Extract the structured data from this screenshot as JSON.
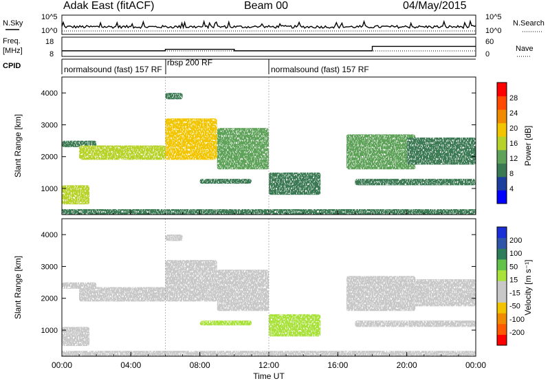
{
  "header": {
    "station": "Adak East (fitACF)",
    "beam": "Beam 00",
    "date": "04/May/2015"
  },
  "labels": {
    "nsky": "N.Sky",
    "nsearch": "N.Search",
    "freq": "Freq.",
    "mhz": "[MHz]",
    "nave": "Nave",
    "cpid": "CPID",
    "slant_range": "Slant Range [km]",
    "time_ut": "Time UT",
    "power_cb_label": "Power [dB]",
    "velocity_cb_label": "Velocity [m s⁻¹]"
  },
  "noise_panel": {
    "left_ticks": [
      "10^5",
      "10^0"
    ],
    "right_ticks": [
      "10^5",
      "10^0"
    ]
  },
  "freq_panel": {
    "left_ticks": [
      "18",
      "8"
    ],
    "right_ticks": [
      "60",
      "0"
    ],
    "freq_segments": [
      {
        "start": 0,
        "end": 6,
        "mhz": 10.9
      },
      {
        "start": 6,
        "end": 10,
        "mhz": 11.7
      },
      {
        "start": 10,
        "end": 18,
        "mhz": 10.9
      },
      {
        "start": 18,
        "end": 24,
        "mhz": 13.2
      }
    ]
  },
  "cpid_panel": {
    "segments": [
      {
        "start": 0,
        "end": 6,
        "label": "normalsound (fast) 157 RF"
      },
      {
        "start": 6,
        "end": 12,
        "label": "rbsp 200 RF"
      },
      {
        "start": 12,
        "end": 24,
        "label": "normalsound (fast) 157 RF"
      }
    ]
  },
  "colorbars": {
    "power": {
      "labels": [
        "28",
        "24",
        "20",
        "16",
        "12",
        "8",
        "4"
      ],
      "colors": [
        "#0000ff",
        "#1c3e9e",
        "#3a7a52",
        "#5fa35a",
        "#b7d32b",
        "#f2c500",
        "#f08a00",
        "#ff4a00",
        "#ff0000"
      ]
    },
    "velocity": {
      "labels": [
        "200",
        "100",
        "50",
        "15",
        "-15",
        "-50",
        "-100",
        "-200"
      ],
      "colors": [
        "#1a2fd6",
        "#2f55a8",
        "#2e7d5a",
        "#63c24a",
        "#a9e23b",
        "#c8c8c8",
        "#c8c8c8",
        "#f2c400",
        "#f08a00",
        "#ff5a00",
        "#ff0000"
      ]
    }
  },
  "chart_data": {
    "type": "heatmap",
    "x_unit": "hours UT",
    "y_unit": "km",
    "xlim": [
      0,
      24
    ],
    "ylim": [
      180,
      4500
    ],
    "x_ticks": [
      "00:00",
      "04:00",
      "08:00",
      "12:00",
      "16:00",
      "20:00",
      "00:00"
    ],
    "y_ticks": [
      "1000",
      "2000",
      "3000",
      "4000"
    ],
    "backscatter_features": [
      {
        "start_h": 0.0,
        "end_h": 1.6,
        "range_low_km": 500,
        "range_high_km": 1100,
        "power_db": 14,
        "velocity_ms": 0
      },
      {
        "start_h": 0.0,
        "end_h": 2.0,
        "range_low_km": 2300,
        "range_high_km": 2500,
        "power_db": 6,
        "velocity_ms": 0
      },
      {
        "start_h": 1.0,
        "end_h": 6.0,
        "range_low_km": 1900,
        "range_high_km": 2350,
        "power_db": 16,
        "velocity_ms": 0
      },
      {
        "start_h": 6.0,
        "end_h": 9.0,
        "range_low_km": 1900,
        "range_high_km": 3200,
        "power_db": 20,
        "velocity_ms": 0
      },
      {
        "start_h": 6.0,
        "end_h": 7.0,
        "range_low_km": 3800,
        "range_high_km": 4000,
        "power_db": 6,
        "velocity_ms": 0
      },
      {
        "start_h": 9.0,
        "end_h": 12.0,
        "range_low_km": 1600,
        "range_high_km": 2900,
        "power_db": 12,
        "velocity_ms": 0
      },
      {
        "start_h": 8.0,
        "end_h": 11.0,
        "range_low_km": 1150,
        "range_high_km": 1300,
        "power_db": 6,
        "velocity_ms": 50
      },
      {
        "start_h": 12.0,
        "end_h": 15.0,
        "range_low_km": 800,
        "range_high_km": 1500,
        "power_db": 8,
        "velocity_ms": 50
      },
      {
        "start_h": 16.5,
        "end_h": 20.5,
        "range_low_km": 1600,
        "range_high_km": 2700,
        "power_db": 10,
        "velocity_ms": 15
      },
      {
        "start_h": 17.0,
        "end_h": 24.0,
        "range_low_km": 1100,
        "range_high_km": 1300,
        "power_db": 6,
        "velocity_ms": 0
      },
      {
        "start_h": 20.0,
        "end_h": 24.0,
        "range_low_km": 1750,
        "range_high_km": 2600,
        "power_db": 6,
        "velocity_ms": 0
      }
    ]
  }
}
